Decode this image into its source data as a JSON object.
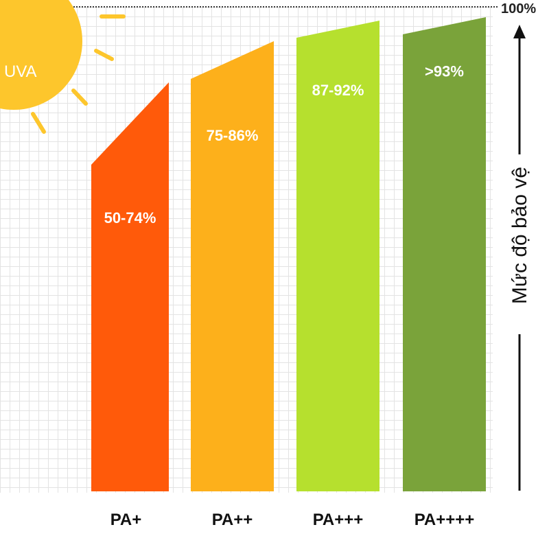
{
  "chart_data": {
    "type": "bar",
    "categories": [
      "PA+",
      "PA++",
      "PA+++",
      "PA++++"
    ],
    "ranges": [
      [
        50,
        74
      ],
      [
        75,
        86
      ],
      [
        87,
        92
      ],
      [
        93,
        100
      ]
    ],
    "value_labels": [
      "50-74%",
      "75-86%",
      "87-92%",
      ">93%"
    ],
    "colors": [
      "#ff5a0a",
      "#fdb01b",
      "#b6e02e",
      "#7aa33a"
    ],
    "ylabel": "Mức độ bảo vệ",
    "ymax_label": "100%",
    "ylim": [
      0,
      100
    ]
  },
  "sun": {
    "label": "UVA",
    "color": "#fdc62c"
  }
}
